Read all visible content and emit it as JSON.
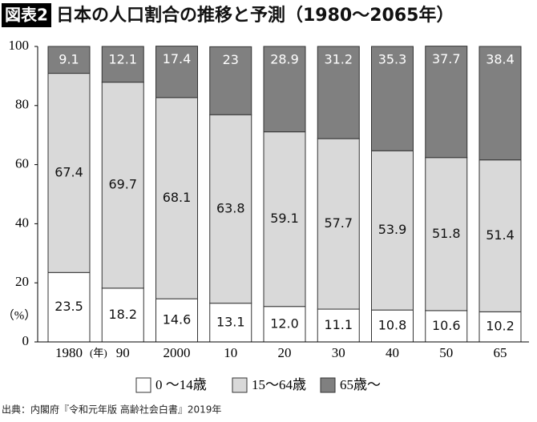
{
  "chart_data": {
    "type": "stacked-bar",
    "figure_label": "図表2",
    "title": "日本の人口割合の推移と予測（1980〜2065年）",
    "categories": [
      "1980",
      "90",
      "2000",
      "10",
      "20",
      "30",
      "40",
      "50",
      "65"
    ],
    "x_unit": "(年)",
    "y_unit": "（%）",
    "series": [
      {
        "name": "0 〜14歳",
        "color": "#ffffff",
        "values": [
          23.5,
          18.2,
          14.6,
          13.1,
          12.0,
          11.1,
          10.8,
          10.6,
          10.2
        ],
        "value_labels": [
          "23.5",
          "18.2",
          "14.6",
          "13.1",
          "12.0",
          "11.1",
          "10.8",
          "10.6",
          "10.2"
        ]
      },
      {
        "name": "15〜64歳",
        "color": "#d9d9d9",
        "values": [
          67.4,
          69.7,
          68.1,
          63.8,
          59.1,
          57.7,
          53.9,
          51.8,
          51.4
        ],
        "value_labels": [
          "67.4",
          "69.7",
          "68.1",
          "63.8",
          "59.1",
          "57.7",
          "53.9",
          "51.8",
          "51.4"
        ]
      },
      {
        "name": "65歳〜",
        "color": "#808080",
        "values": [
          9.1,
          12.1,
          17.4,
          23,
          28.9,
          31.2,
          35.3,
          37.7,
          38.4
        ],
        "value_labels": [
          "9.1",
          "12.1",
          "17.4",
          "23",
          "28.9",
          "31.2",
          "35.3",
          "37.7",
          "38.4"
        ]
      }
    ],
    "ylim": [
      0,
      100
    ],
    "yticks": [
      0,
      20,
      40,
      60,
      80,
      100
    ],
    "source": "出典：内閣府『令和元年版 高齢社会白書』2019年"
  }
}
